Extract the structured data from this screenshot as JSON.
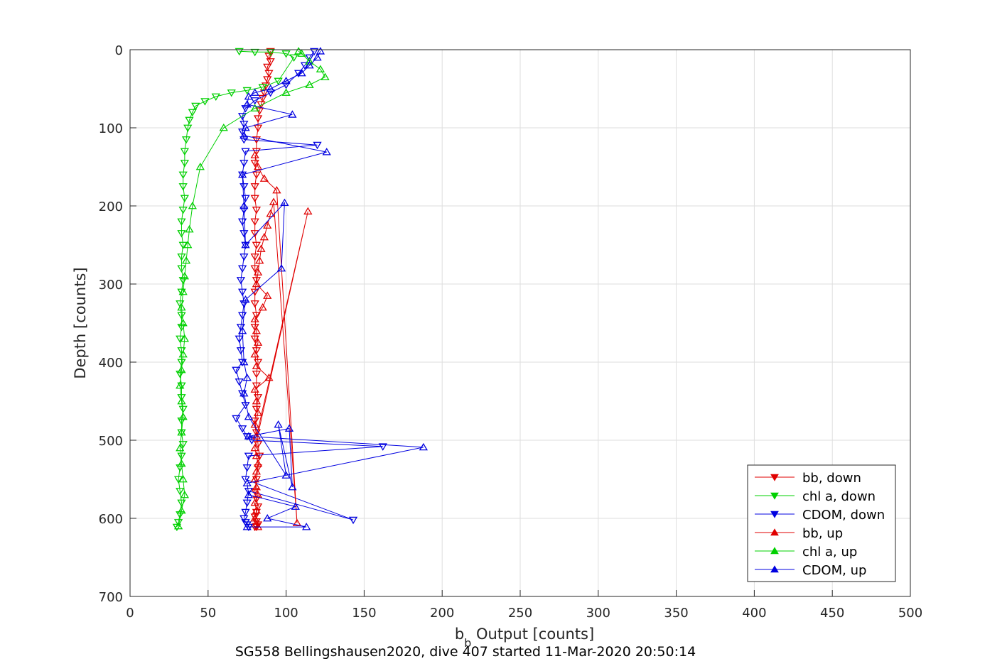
{
  "chart_data": {
    "type": "scatter",
    "title": "",
    "xlabel_main": "b",
    "xlabel_sub": "b",
    "xlabel_rest": " Output [counts]",
    "ylabel": "Depth [counts]",
    "caption": "SG558 Bellingshausen2020, dive 407 started 11-Mar-2020 20:50:14",
    "xlim": [
      0,
      500
    ],
    "ylim": [
      0,
      700
    ],
    "y_reversed": true,
    "grid": true,
    "legend_position": "bottom-right",
    "xticks": [
      0,
      50,
      100,
      150,
      200,
      250,
      300,
      350,
      400,
      450,
      500
    ],
    "xtick_labels": [
      "0",
      "50",
      "100",
      "150",
      "200",
      "250",
      "300",
      "350",
      "400",
      "450",
      "500"
    ],
    "yticks": [
      0,
      100,
      200,
      300,
      400,
      500,
      600,
      700
    ],
    "ytick_labels": [
      "0",
      "100",
      "200",
      "300",
      "400",
      "500",
      "600",
      "700"
    ],
    "series": [
      {
        "name": "bb, down",
        "color": "#e00000",
        "marker": "triangle-down",
        "x": [
          90,
          89,
          90,
          88,
          89,
          88,
          87,
          86,
          85,
          84,
          83,
          82,
          82,
          81,
          81,
          80,
          81,
          80,
          80,
          81,
          80,
          80,
          81,
          80,
          80,
          81,
          80,
          80,
          81,
          80,
          80,
          81,
          82,
          81,
          81,
          82,
          81,
          80,
          81,
          82,
          83,
          82,
          81,
          80,
          81,
          82,
          81,
          80,
          81,
          82,
          81,
          80,
          81
        ],
        "y": [
          2,
          8,
          15,
          22,
          30,
          38,
          46,
          55,
          62,
          70,
          78,
          88,
          100,
          115,
          130,
          145,
          160,
          175,
          190,
          205,
          220,
          235,
          250,
          265,
          280,
          295,
          310,
          325,
          340,
          355,
          370,
          385,
          400,
          415,
          430,
          445,
          460,
          475,
          490,
          505,
          520,
          535,
          550,
          565,
          575,
          585,
          592,
          598,
          604,
          608,
          610,
          611,
          611
        ]
      },
      {
        "name": "chl a, down",
        "color": "#00d000",
        "marker": "triangle-down",
        "x": [
          70,
          80,
          90,
          100,
          105,
          95,
          85,
          75,
          65,
          55,
          48,
          42,
          40,
          38,
          37,
          36,
          35,
          35,
          34,
          34,
          35,
          34,
          33,
          33,
          34,
          33,
          33,
          34,
          33,
          32,
          33,
          33,
          32,
          33,
          33,
          32,
          33,
          33,
          34,
          33,
          33,
          34,
          33,
          32,
          31,
          32,
          33,
          32,
          31,
          30
        ],
        "y": [
          2,
          3,
          3,
          5,
          10,
          40,
          48,
          52,
          55,
          60,
          66,
          72,
          80,
          90,
          100,
          115,
          130,
          145,
          160,
          175,
          190,
          205,
          220,
          235,
          250,
          265,
          280,
          295,
          310,
          325,
          340,
          355,
          370,
          385,
          400,
          415,
          430,
          445,
          460,
          475,
          490,
          505,
          520,
          535,
          550,
          565,
          580,
          595,
          605,
          611
        ]
      },
      {
        "name": "CDOM, down",
        "color": "#0000e0",
        "marker": "triangle-down",
        "x": [
          118,
          115,
          112,
          108,
          100,
          90,
          80,
          74,
          72,
          73,
          72,
          73,
          120,
          74,
          73,
          72,
          73,
          74,
          73,
          72,
          73,
          74,
          73,
          72,
          71,
          72,
          73,
          72,
          71,
          70,
          71,
          72,
          68,
          70,
          72,
          74,
          68,
          72,
          75,
          78,
          162,
          76,
          75,
          74,
          143,
          76,
          75,
          74,
          73,
          74,
          75,
          76
        ],
        "y": [
          2,
          10,
          20,
          30,
          45,
          55,
          65,
          75,
          85,
          95,
          105,
          115,
          122,
          130,
          145,
          160,
          175,
          190,
          205,
          220,
          235,
          250,
          265,
          280,
          295,
          310,
          325,
          340,
          355,
          370,
          385,
          400,
          410,
          425,
          440,
          455,
          472,
          485,
          495,
          500,
          508,
          520,
          535,
          550,
          602,
          565,
          580,
          592,
          600,
          605,
          608,
          611
        ]
      },
      {
        "name": "bb, up",
        "color": "#e00000",
        "marker": "triangle-up",
        "x": [
          82,
          80,
          81,
          80,
          82,
          81,
          80,
          81,
          82,
          81,
          80,
          114,
          81,
          80,
          82,
          81,
          80,
          89,
          81,
          80,
          82,
          81,
          80,
          85,
          88,
          81,
          82,
          83,
          84,
          86,
          88,
          90,
          92,
          107,
          94,
          86,
          82,
          80
        ],
        "y": [
          611,
          600,
          590,
          580,
          570,
          560,
          550,
          540,
          530,
          520,
          510,
          207,
          495,
          480,
          465,
          450,
          435,
          420,
          405,
          390,
          375,
          360,
          345,
          330,
          315,
          300,
          285,
          270,
          255,
          240,
          225,
          210,
          195,
          606,
          180,
          165,
          150,
          135
        ]
      },
      {
        "name": "chl a, up",
        "color": "#00d000",
        "marker": "triangle-up",
        "x": [
          31,
          33,
          35,
          34,
          33,
          32,
          33,
          34,
          33,
          32,
          33,
          34,
          35,
          34,
          33,
          34,
          35,
          36,
          37,
          38,
          40,
          45,
          60,
          80,
          100,
          115,
          125,
          122,
          115,
          110,
          108
        ],
        "y": [
          610,
          590,
          570,
          550,
          530,
          510,
          490,
          470,
          450,
          430,
          410,
          390,
          370,
          350,
          330,
          310,
          290,
          270,
          250,
          230,
          200,
          150,
          100,
          75,
          55,
          45,
          35,
          25,
          15,
          5,
          2
        ]
      },
      {
        "name": "CDOM, up",
        "color": "#0000e0",
        "marker": "triangle-up",
        "x": [
          75,
          113,
          88,
          106,
          76,
          75,
          188,
          76,
          102,
          104,
          95,
          100,
          76,
          73,
          75,
          73,
          72,
          74,
          97,
          99,
          74,
          73,
          72,
          126,
          73,
          74,
          104,
          75,
          76,
          80,
          90,
          100,
          110,
          115,
          120,
          122
        ],
        "y": [
          611,
          611,
          600,
          585,
          570,
          555,
          509,
          495,
          485,
          560,
          480,
          545,
          470,
          440,
          420,
          400,
          360,
          320,
          280,
          196,
          250,
          200,
          160,
          131,
          110,
          100,
          83,
          70,
          60,
          55,
          50,
          40,
          30,
          20,
          10,
          2
        ]
      }
    ]
  }
}
